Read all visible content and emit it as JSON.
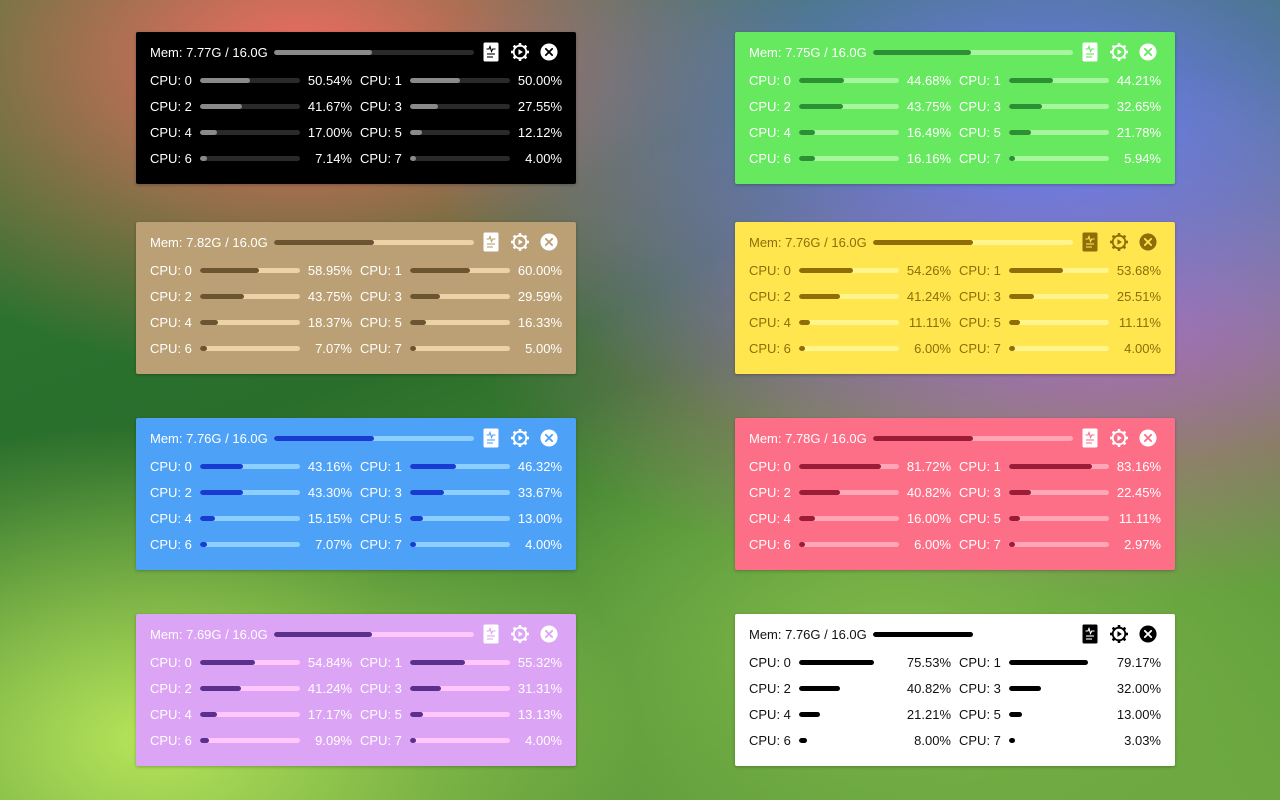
{
  "panels": [
    {
      "id": "black",
      "bg": "#000000",
      "text": "#ffffff",
      "track": "#2a2a2a",
      "fill": "#8a8a8a",
      "icon_bg": "#ffffff",
      "icon_fg": "#000000",
      "mem": {
        "label": "Mem: 7.77G / 16.0G",
        "fraction": 0.49
      },
      "cpus": [
        {
          "label": "CPU: 0",
          "pct": "50.54%",
          "value": 50.54
        },
        {
          "label": "CPU: 1",
          "pct": "50.00%",
          "value": 50.0
        },
        {
          "label": "CPU: 2",
          "pct": "41.67%",
          "value": 41.67
        },
        {
          "label": "CPU: 3",
          "pct": "27.55%",
          "value": 27.55
        },
        {
          "label": "CPU: 4",
          "pct": "17.00%",
          "value": 17.0
        },
        {
          "label": "CPU: 5",
          "pct": "12.12%",
          "value": 12.12
        },
        {
          "label": "CPU: 6",
          "pct": "7.14%",
          "value": 7.14
        },
        {
          "label": "CPU: 7",
          "pct": "4.00%",
          "value": 4.0
        }
      ]
    },
    {
      "id": "green",
      "bg": "#66e85f",
      "text": "#ffffff",
      "track": "#a7f59d",
      "fill": "#2b8f34",
      "icon_bg": "#ffffff",
      "icon_fg": "#66e85f",
      "mem": {
        "label": "Mem: 7.75G / 16.0G",
        "fraction": 0.49
      },
      "cpus": [
        {
          "label": "CPU: 0",
          "pct": "44.68%",
          "value": 44.68
        },
        {
          "label": "CPU: 1",
          "pct": "44.21%",
          "value": 44.21
        },
        {
          "label": "CPU: 2",
          "pct": "43.75%",
          "value": 43.75
        },
        {
          "label": "CPU: 3",
          "pct": "32.65%",
          "value": 32.65
        },
        {
          "label": "CPU: 4",
          "pct": "16.49%",
          "value": 16.49
        },
        {
          "label": "CPU: 5",
          "pct": "21.78%",
          "value": 21.78
        },
        {
          "label": "CPU: 6",
          "pct": "16.16%",
          "value": 16.16
        },
        {
          "label": "CPU: 7",
          "pct": "5.94%",
          "value": 5.94
        }
      ]
    },
    {
      "id": "tan",
      "bg": "#baa074",
      "text": "#ffffff",
      "track": "#ecd2a6",
      "fill": "#6b5531",
      "icon_bg": "#ffffff",
      "icon_fg": "#baa074",
      "mem": {
        "label": "Mem: 7.82G / 16.0G",
        "fraction": 0.5
      },
      "cpus": [
        {
          "label": "CPU: 0",
          "pct": "58.95%",
          "value": 58.95
        },
        {
          "label": "CPU: 1",
          "pct": "60.00%",
          "value": 60.0
        },
        {
          "label": "CPU: 2",
          "pct": "43.75%",
          "value": 43.75
        },
        {
          "label": "CPU: 3",
          "pct": "29.59%",
          "value": 29.59
        },
        {
          "label": "CPU: 4",
          "pct": "18.37%",
          "value": 18.37
        },
        {
          "label": "CPU: 5",
          "pct": "16.33%",
          "value": 16.33
        },
        {
          "label": "CPU: 6",
          "pct": "7.07%",
          "value": 7.07
        },
        {
          "label": "CPU: 7",
          "pct": "5.00%",
          "value": 5.0
        }
      ]
    },
    {
      "id": "yellow",
      "bg": "#ffe54e",
      "text": "#8a7008",
      "track": "#fff58c",
      "fill": "#8f6d07",
      "icon_bg": "#8f6d07",
      "icon_fg": "#ffe54e",
      "mem": {
        "label": "Mem: 7.76G / 16.0G",
        "fraction": 0.5
      },
      "cpus": [
        {
          "label": "CPU: 0",
          "pct": "54.26%",
          "value": 54.26
        },
        {
          "label": "CPU: 1",
          "pct": "53.68%",
          "value": 53.68
        },
        {
          "label": "CPU: 2",
          "pct": "41.24%",
          "value": 41.24
        },
        {
          "label": "CPU: 3",
          "pct": "25.51%",
          "value": 25.51
        },
        {
          "label": "CPU: 4",
          "pct": "11.11%",
          "value": 11.11
        },
        {
          "label": "CPU: 5",
          "pct": "11.11%",
          "value": 11.11
        },
        {
          "label": "CPU: 6",
          "pct": "6.00%",
          "value": 6.0
        },
        {
          "label": "CPU: 7",
          "pct": "4.00%",
          "value": 4.0
        }
      ]
    },
    {
      "id": "blue",
      "bg": "#4da2f8",
      "text": "#ffffff",
      "track": "#8dd0ff",
      "fill": "#1a3bd2",
      "icon_bg": "#ffffff",
      "icon_fg": "#4da2f8",
      "mem": {
        "label": "Mem: 7.76G / 16.0G",
        "fraction": 0.5
      },
      "cpus": [
        {
          "label": "CPU: 0",
          "pct": "43.16%",
          "value": 43.16
        },
        {
          "label": "CPU: 1",
          "pct": "46.32%",
          "value": 46.32
        },
        {
          "label": "CPU: 2",
          "pct": "43.30%",
          "value": 43.3
        },
        {
          "label": "CPU: 3",
          "pct": "33.67%",
          "value": 33.67
        },
        {
          "label": "CPU: 4",
          "pct": "15.15%",
          "value": 15.15
        },
        {
          "label": "CPU: 5",
          "pct": "13.00%",
          "value": 13.0
        },
        {
          "label": "CPU: 6",
          "pct": "7.07%",
          "value": 7.07
        },
        {
          "label": "CPU: 7",
          "pct": "4.00%",
          "value": 4.0
        }
      ]
    },
    {
      "id": "pink",
      "bg": "#fd6f87",
      "text": "#ffffff",
      "track": "#ffa7b6",
      "fill": "#9a1c36",
      "icon_bg": "#ffffff",
      "icon_fg": "#fd6f87",
      "mem": {
        "label": "Mem: 7.78G / 16.0G",
        "fraction": 0.5
      },
      "cpus": [
        {
          "label": "CPU: 0",
          "pct": "81.72%",
          "value": 81.72
        },
        {
          "label": "CPU: 1",
          "pct": "83.16%",
          "value": 83.16
        },
        {
          "label": "CPU: 2",
          "pct": "40.82%",
          "value": 40.82
        },
        {
          "label": "CPU: 3",
          "pct": "22.45%",
          "value": 22.45
        },
        {
          "label": "CPU: 4",
          "pct": "16.00%",
          "value": 16.0
        },
        {
          "label": "CPU: 5",
          "pct": "11.11%",
          "value": 11.11
        },
        {
          "label": "CPU: 6",
          "pct": "6.00%",
          "value": 6.0
        },
        {
          "label": "CPU: 7",
          "pct": "2.97%",
          "value": 2.97
        }
      ]
    },
    {
      "id": "purple",
      "bg": "#dca4f4",
      "text": "#ffffff",
      "track": "#ffc7fb",
      "fill": "#5b2f8c",
      "icon_bg": "#ffffff",
      "icon_fg": "#dca4f4",
      "mem": {
        "label": "Mem: 7.69G / 16.0G",
        "fraction": 0.49
      },
      "cpus": [
        {
          "label": "CPU: 0",
          "pct": "54.84%",
          "value": 54.84
        },
        {
          "label": "CPU: 1",
          "pct": "55.32%",
          "value": 55.32
        },
        {
          "label": "CPU: 2",
          "pct": "41.24%",
          "value": 41.24
        },
        {
          "label": "CPU: 3",
          "pct": "31.31%",
          "value": 31.31
        },
        {
          "label": "CPU: 4",
          "pct": "17.17%",
          "value": 17.17
        },
        {
          "label": "CPU: 5",
          "pct": "13.13%",
          "value": 13.13
        },
        {
          "label": "CPU: 6",
          "pct": "9.09%",
          "value": 9.09
        },
        {
          "label": "CPU: 7",
          "pct": "4.00%",
          "value": 4.0
        }
      ]
    },
    {
      "id": "white",
      "bg": "#ffffff",
      "text": "#111111",
      "track": "#ffffff",
      "fill": "#000000",
      "icon_bg": "#000000",
      "icon_fg": "#ffffff",
      "mem": {
        "label": "Mem: 7.76G / 16.0G",
        "fraction": 0.5
      },
      "cpus": [
        {
          "label": "CPU: 0",
          "pct": "75.53%",
          "value": 75.53
        },
        {
          "label": "CPU: 1",
          "pct": "79.17%",
          "value": 79.17
        },
        {
          "label": "CPU: 2",
          "pct": "40.82%",
          "value": 40.82
        },
        {
          "label": "CPU: 3",
          "pct": "32.00%",
          "value": 32.0
        },
        {
          "label": "CPU: 4",
          "pct": "21.21%",
          "value": 21.21
        },
        {
          "label": "CPU: 5",
          "pct": "13.00%",
          "value": 13.0
        },
        {
          "label": "CPU: 6",
          "pct": "8.00%",
          "value": 8.0
        },
        {
          "label": "CPU: 7",
          "pct": "3.03%",
          "value": 3.03
        }
      ]
    }
  ],
  "icons": {
    "log": "document-chart-icon",
    "settings": "gear-icon",
    "close": "close-icon"
  }
}
